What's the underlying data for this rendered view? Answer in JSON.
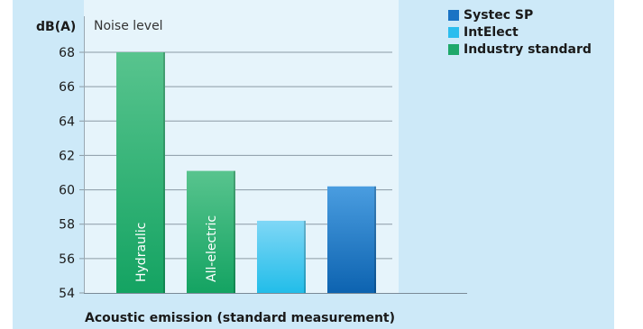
{
  "chart_data": {
    "type": "bar",
    "title": "Acoustic emission (standard measurement)",
    "subtitle": "Noise level",
    "ylabel": "dB(A)",
    "xlabel": "",
    "ylim": [
      54,
      70
    ],
    "yticks": [
      54,
      56,
      58,
      60,
      62,
      64,
      66,
      68
    ],
    "grid": true,
    "legend_position": "top-right",
    "bars": [
      {
        "label": "Hydraulic",
        "value": 68.0,
        "series": "Industry standard"
      },
      {
        "label": "All-electric",
        "value": 61.1,
        "series": "Industry standard"
      },
      {
        "label": "",
        "value": 58.2,
        "series": "IntElect"
      },
      {
        "label": "",
        "value": 60.2,
        "series": "Systec SP"
      }
    ],
    "legend": [
      {
        "name": "Systec SP",
        "color": "#1a73c4"
      },
      {
        "name": "IntElect",
        "color": "#2bbdee"
      },
      {
        "name": "Industry standard",
        "color": "#1ea86a"
      }
    ]
  },
  "colors": {
    "panel_background": "#cde9f8",
    "plot_background": "#e6f4fb",
    "Industry standard": [
      "#58c48e",
      "#14a362"
    ],
    "IntElect": [
      "#7fd7f6",
      "#22bde9"
    ],
    "Systec SP": [
      "#4a9de0",
      "#0d63b0"
    ]
  }
}
